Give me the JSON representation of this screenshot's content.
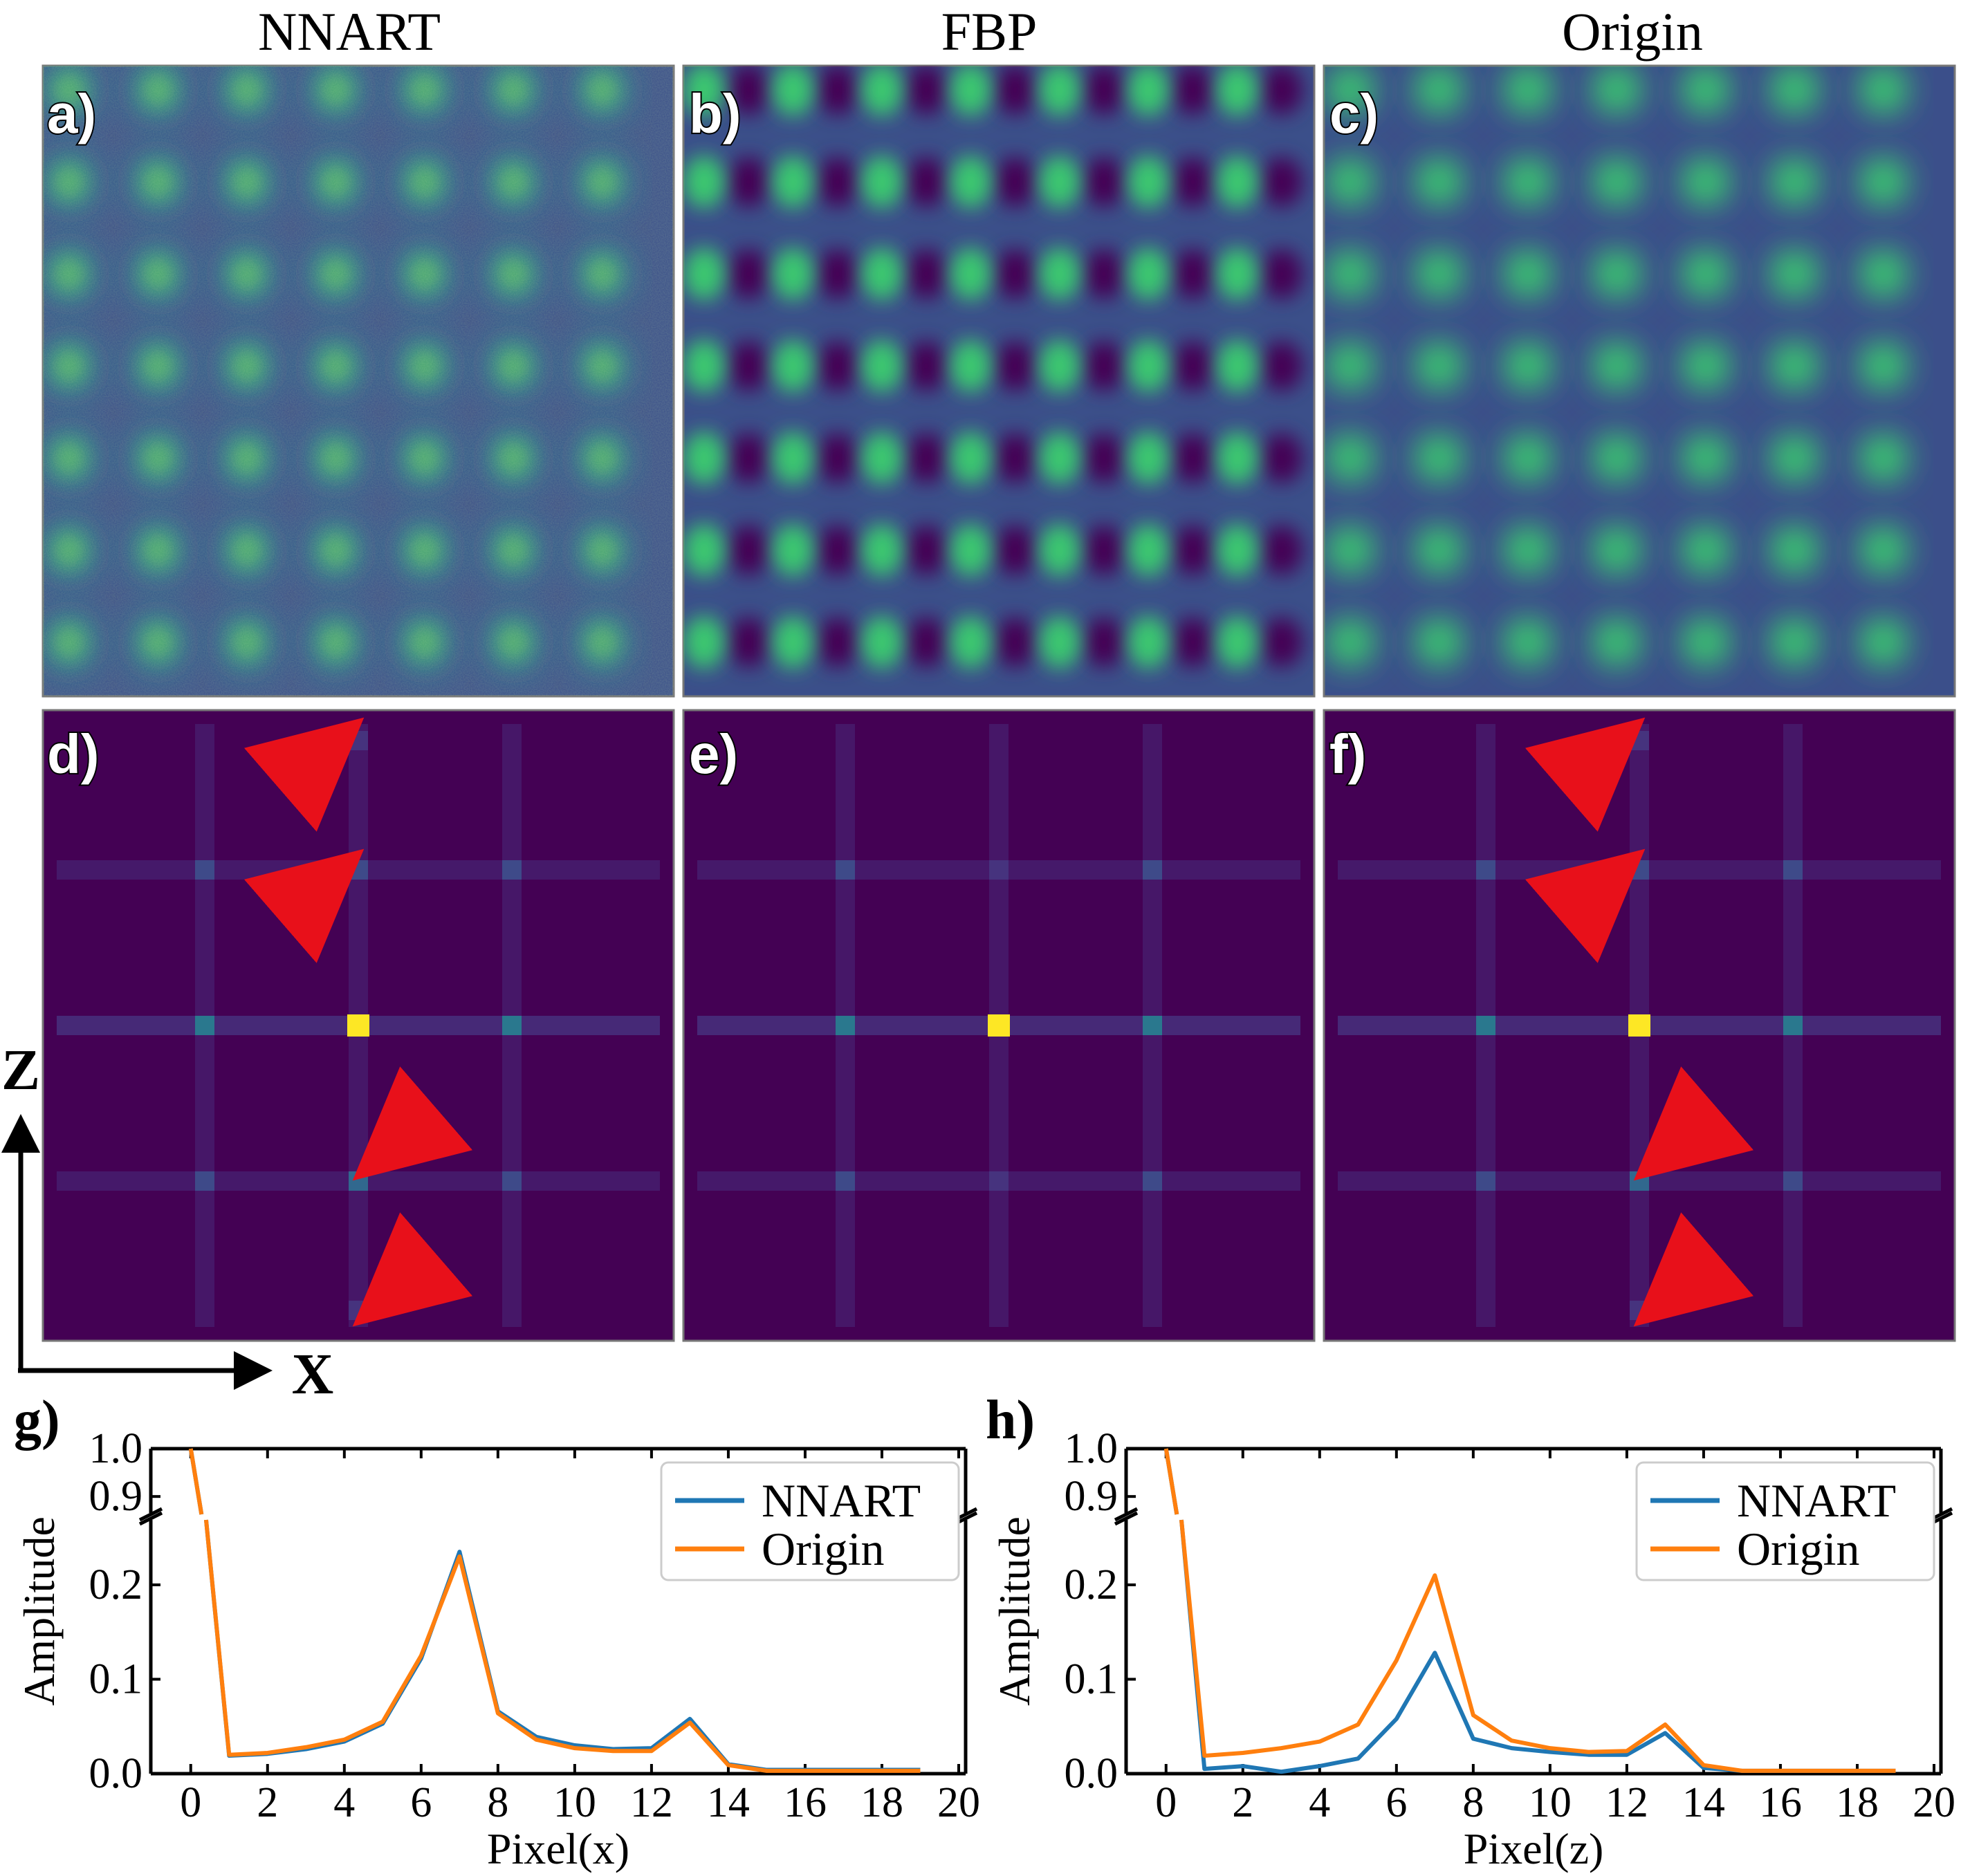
{
  "columns": [
    "NNART",
    "FBP",
    "Origin"
  ],
  "panels": {
    "images": [
      {
        "label": "a)",
        "pattern": "nnart"
      },
      {
        "label": "b)",
        "pattern": "fbp"
      },
      {
        "label": "c)",
        "pattern": "origin"
      }
    ],
    "spectra": [
      {
        "label": "d)",
        "arrows": true
      },
      {
        "label": "e)",
        "arrows": false
      },
      {
        "label": "f)",
        "arrows": true
      }
    ]
  },
  "axes_indicator": {
    "vertical": "Z",
    "horizontal": "X"
  },
  "colors": {
    "nnart": "#1f77b4",
    "origin": "#ff7f0e",
    "viridis_dark": "#440154",
    "viridis_bg": "#3b4f8a",
    "viridis_mid": "#21908d",
    "viridis_bright": "#3ac870",
    "viridis_yellow": "#fde725",
    "arrow": "#e8101a"
  },
  "chart_data": [
    {
      "type": "line",
      "label": "g)",
      "xlabel": "Pixel(x)",
      "ylabel": "Amplitude",
      "xlim": [
        -0.5,
        20
      ],
      "xticks": [
        0,
        2,
        4,
        6,
        8,
        10,
        12,
        14,
        16,
        18,
        20
      ],
      "broken_y_axis": true,
      "ylim_lower": [
        0,
        0.26
      ],
      "ylim_upper": [
        0.88,
        1.0
      ],
      "yticks_lower": [
        "0.0",
        "0.1",
        "0.2"
      ],
      "yticks_upper": [
        "0.9",
        "1.0"
      ],
      "legend_position": "top-right",
      "x": [
        0,
        1,
        2,
        3,
        4,
        5,
        6,
        7,
        8,
        9,
        10,
        11,
        12,
        13,
        14,
        15,
        16,
        17,
        18,
        19
      ],
      "series": [
        {
          "name": "NNART",
          "values": [
            1.0,
            0.019,
            0.021,
            0.026,
            0.034,
            0.053,
            0.122,
            0.235,
            0.066,
            0.039,
            0.03,
            0.026,
            0.027,
            0.058,
            0.01,
            0.004,
            0.004,
            0.004,
            0.004,
            0.004
          ]
        },
        {
          "name": "Origin",
          "values": [
            1.0,
            0.02,
            0.022,
            0.028,
            0.036,
            0.055,
            0.125,
            0.23,
            0.064,
            0.036,
            0.027,
            0.024,
            0.024,
            0.054,
            0.009,
            0.003,
            0.003,
            0.003,
            0.003,
            0.003
          ]
        }
      ]
    },
    {
      "type": "line",
      "label": "h)",
      "xlabel": "Pixel(z)",
      "ylabel": "Amplitude",
      "xlim": [
        -0.5,
        20
      ],
      "xticks": [
        0,
        2,
        4,
        6,
        8,
        10,
        12,
        14,
        16,
        18,
        20
      ],
      "broken_y_axis": true,
      "ylim_lower": [
        0,
        0.26
      ],
      "ylim_upper": [
        0.88,
        1.0
      ],
      "yticks_lower": [
        "0.0",
        "0.1",
        "0.2"
      ],
      "yticks_upper": [
        "0.9",
        "1.0"
      ],
      "legend_position": "top-right",
      "x": [
        0,
        1,
        2,
        3,
        4,
        5,
        6,
        7,
        8,
        9,
        10,
        11,
        12,
        13,
        14,
        15,
        16,
        17,
        18,
        19
      ],
      "series": [
        {
          "name": "NNART",
          "values": [
            1.0,
            0.005,
            0.008,
            0.002,
            0.008,
            0.016,
            0.058,
            0.128,
            0.037,
            0.027,
            0.023,
            0.02,
            0.02,
            0.043,
            0.006,
            0.003,
            0.003,
            0.003,
            0.003,
            0.003
          ]
        },
        {
          "name": "Origin",
          "values": [
            1.0,
            0.019,
            0.022,
            0.027,
            0.034,
            0.052,
            0.12,
            0.21,
            0.062,
            0.035,
            0.027,
            0.023,
            0.024,
            0.052,
            0.009,
            0.003,
            0.003,
            0.003,
            0.003,
            0.003
          ]
        }
      ]
    }
  ]
}
